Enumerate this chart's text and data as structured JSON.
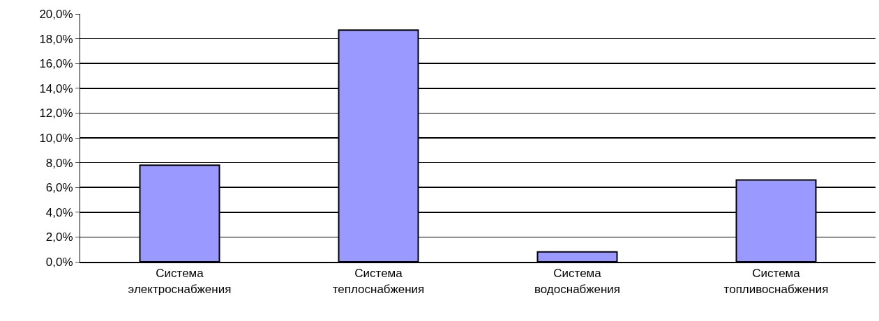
{
  "chart_data": {
    "type": "bar",
    "categories": [
      "Система\nэлектроснабжения",
      "Система\nтеплоснабжения",
      "Система\nводоснабжения",
      "Система\nтопливоснабжения"
    ],
    "values": [
      7.8,
      18.7,
      0.8,
      6.6
    ],
    "color": "#9999ff",
    "ylim": [
      0,
      20
    ],
    "yticks": [
      {
        "value": 0,
        "label": "0,0%"
      },
      {
        "value": 2,
        "label": "2,0%"
      },
      {
        "value": 4,
        "label": "4,0%"
      },
      {
        "value": 6,
        "label": "6,0%"
      },
      {
        "value": 8,
        "label": "8,0%"
      },
      {
        "value": 10,
        "label": "10,0%"
      },
      {
        "value": 12,
        "label": "12,0%"
      },
      {
        "value": 14,
        "label": "14,0%"
      },
      {
        "value": 16,
        "label": "16,0%"
      },
      {
        "value": 18,
        "label": "18,0%"
      },
      {
        "value": 20,
        "label": "20,0%"
      }
    ],
    "grid": "y"
  }
}
